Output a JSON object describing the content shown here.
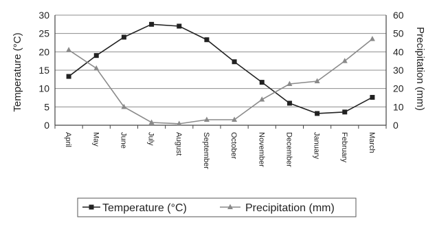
{
  "chart_data": {
    "type": "line",
    "categories": [
      "April",
      "May",
      "June",
      "July",
      "August",
      "September",
      "October",
      "November",
      "December",
      "January",
      "February",
      "March"
    ],
    "series": [
      {
        "name": "Temperature (°C)",
        "axis": "left",
        "marker": "square",
        "color": "#222222",
        "values": [
          13.3,
          19.0,
          24.0,
          27.5,
          27.0,
          23.3,
          17.3,
          11.7,
          6.0,
          3.2,
          3.6,
          7.6
        ]
      },
      {
        "name": "Precipitation (mm)",
        "axis": "right",
        "marker": "triangle",
        "color": "#8a8a8a",
        "values": [
          41,
          31,
          10,
          1.5,
          0.8,
          3,
          3,
          14,
          22.5,
          24,
          35,
          47
        ]
      }
    ],
    "ylabel": "Temperature (°C)",
    "ylim": [
      0,
      30
    ],
    "yticks": [
      "0",
      "5",
      "10",
      "15",
      "20",
      "25",
      "30"
    ],
    "y2label": "Precipitation (mm)",
    "y2lim": [
      0,
      60
    ],
    "y2ticks": [
      "0",
      "10",
      "20",
      "30",
      "40",
      "50",
      "60"
    ],
    "grid": true,
    "legend_position": "bottom"
  }
}
